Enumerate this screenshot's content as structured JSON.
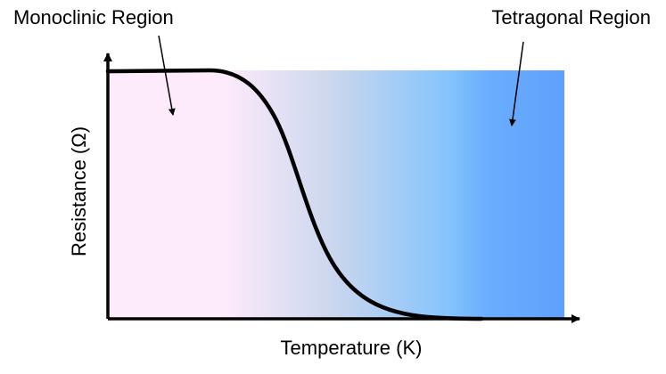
{
  "labels": {
    "left_region": "Monoclinic Region",
    "right_region": "Tetragonal Region",
    "x_axis": "Temperature (K)",
    "y_axis": "Resistance (Ω)"
  },
  "colors": {
    "gradient_start": "#fdeafa",
    "gradient_mid": "#84c3fc",
    "gradient_end": "#5ea0fd",
    "curve": "#000000",
    "axes": "#000000"
  }
}
